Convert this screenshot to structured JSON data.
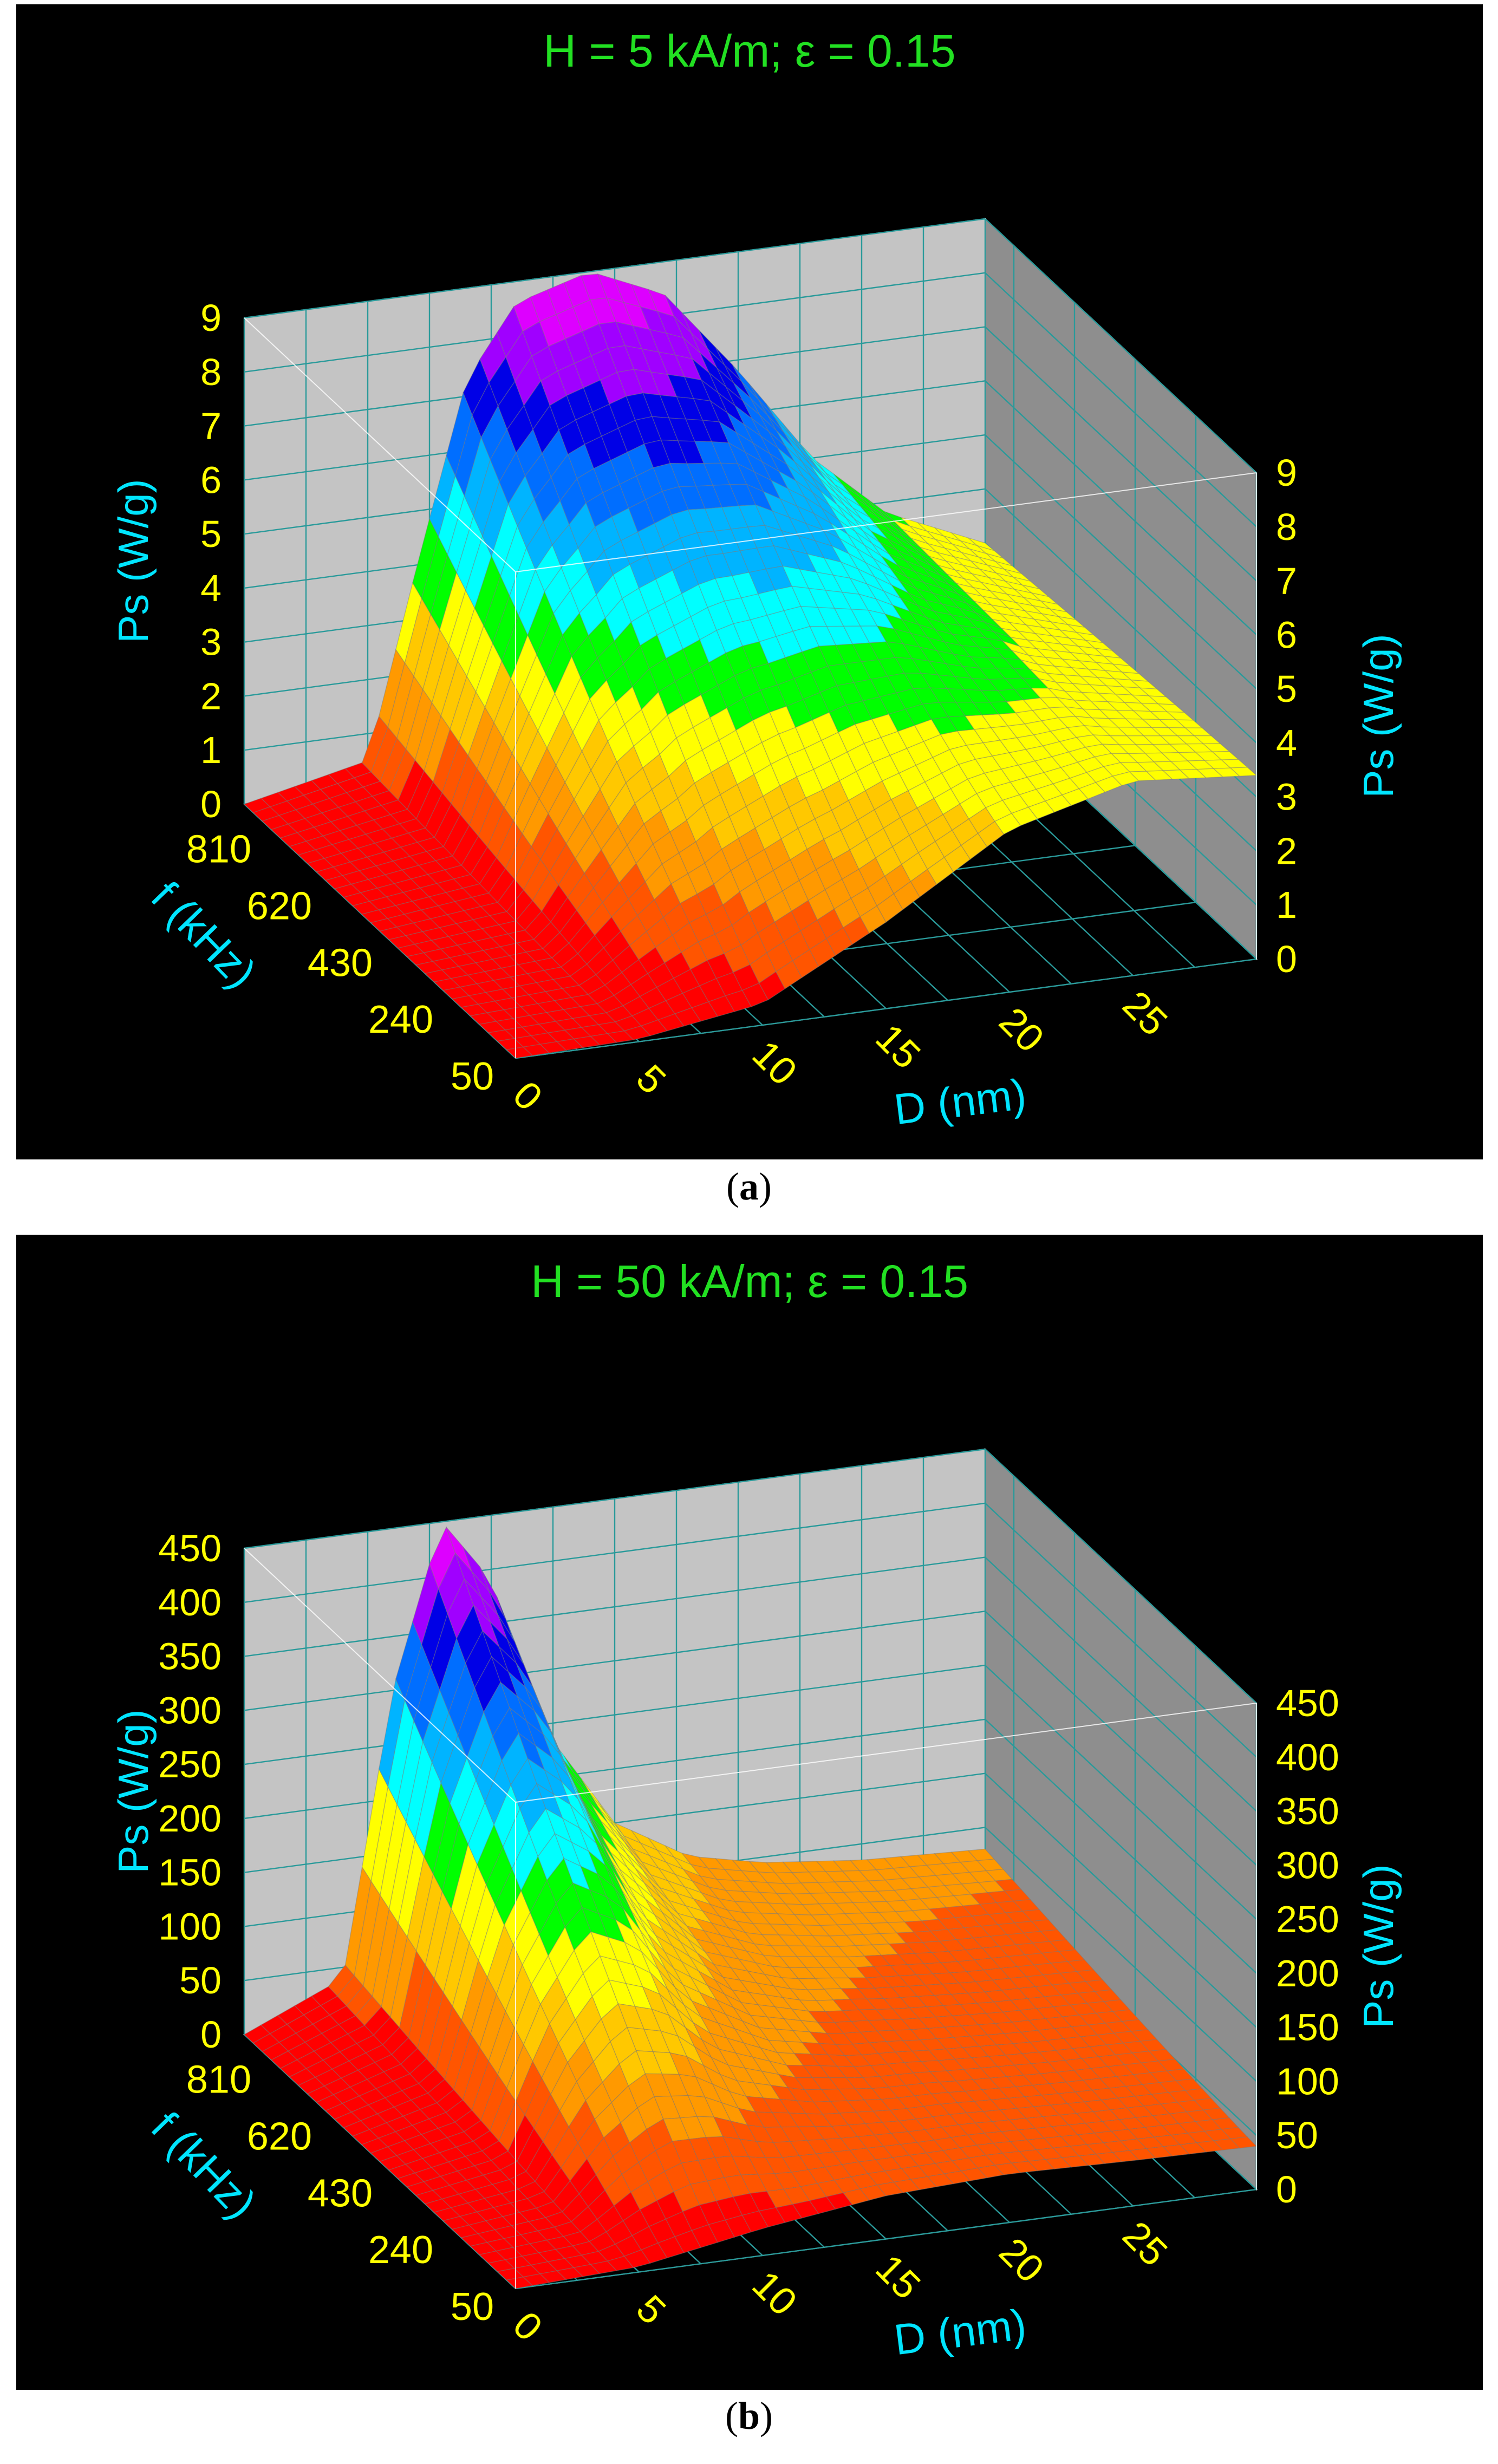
{
  "chart_data": [
    {
      "type": "surface3d",
      "panel_label": "a",
      "title": "H = 5 kA/m;  ε = 0.15",
      "x_axis": {
        "label": "D (nm)",
        "ticks": [
          0,
          5,
          10,
          15,
          20,
          25
        ],
        "range": [
          0,
          30
        ]
      },
      "y_axis": {
        "label": "f (kHz)",
        "ticks": [
          50,
          240,
          430,
          620,
          810
        ],
        "range": [
          50,
          900
        ]
      },
      "z_axis": {
        "label": "Ps (W/g)",
        "ticks": [
          0,
          1,
          2,
          3,
          4,
          5,
          6,
          7,
          8,
          9
        ],
        "range": [
          0,
          9
        ]
      },
      "peak": {
        "D_nm": 14,
        "f_kHz": 900,
        "Ps": 9.0
      },
      "edge_profile_f_max": {
        "D_nm": [
          0,
          5,
          7,
          9,
          11,
          14,
          17,
          20,
          23,
          26,
          30
        ],
        "Ps": [
          0,
          0.5,
          4.0,
          7.3,
          8.6,
          9.0,
          8.4,
          6.8,
          5.0,
          3.8,
          3.0
        ]
      },
      "edge_profile_f_min": {
        "D_nm": [
          0,
          5,
          10,
          15,
          20,
          25,
          30
        ],
        "Ps": [
          0,
          0.05,
          0.4,
          1.6,
          3.0,
          3.6,
          3.4
        ]
      }
    },
    {
      "type": "surface3d",
      "panel_label": "b",
      "title": "H = 50 kA/m;  ε = 0.15",
      "x_axis": {
        "label": "D (nm)",
        "ticks": [
          0,
          5,
          10,
          15,
          20,
          25
        ],
        "range": [
          0,
          30
        ]
      },
      "y_axis": {
        "label": "f (kHz)",
        "ticks": [
          50,
          240,
          430,
          620,
          810
        ],
        "range": [
          50,
          900
        ]
      },
      "z_axis": {
        "label": "Ps (W/g)",
        "ticks": [
          0,
          50,
          100,
          150,
          200,
          250,
          300,
          350,
          400,
          450
        ],
        "range": [
          0,
          450
        ]
      },
      "peak": {
        "D_nm": 8,
        "f_kHz": 900,
        "Ps": 450
      },
      "edge_profile_f_max": {
        "D_nm": [
          0,
          4,
          6,
          8,
          10,
          12,
          15,
          18,
          21,
          25,
          30
        ],
        "Ps": [
          0,
          40,
          300,
          450,
          390,
          250,
          150,
          110,
          95,
          85,
          80
        ]
      },
      "edge_profile_f_min": {
        "D_nm": [
          0,
          5,
          10,
          15,
          20,
          25,
          30
        ],
        "Ps": [
          0,
          5,
          25,
          40,
          45,
          42,
          40
        ]
      }
    }
  ],
  "captions": {
    "a": "a",
    "b": "b"
  }
}
